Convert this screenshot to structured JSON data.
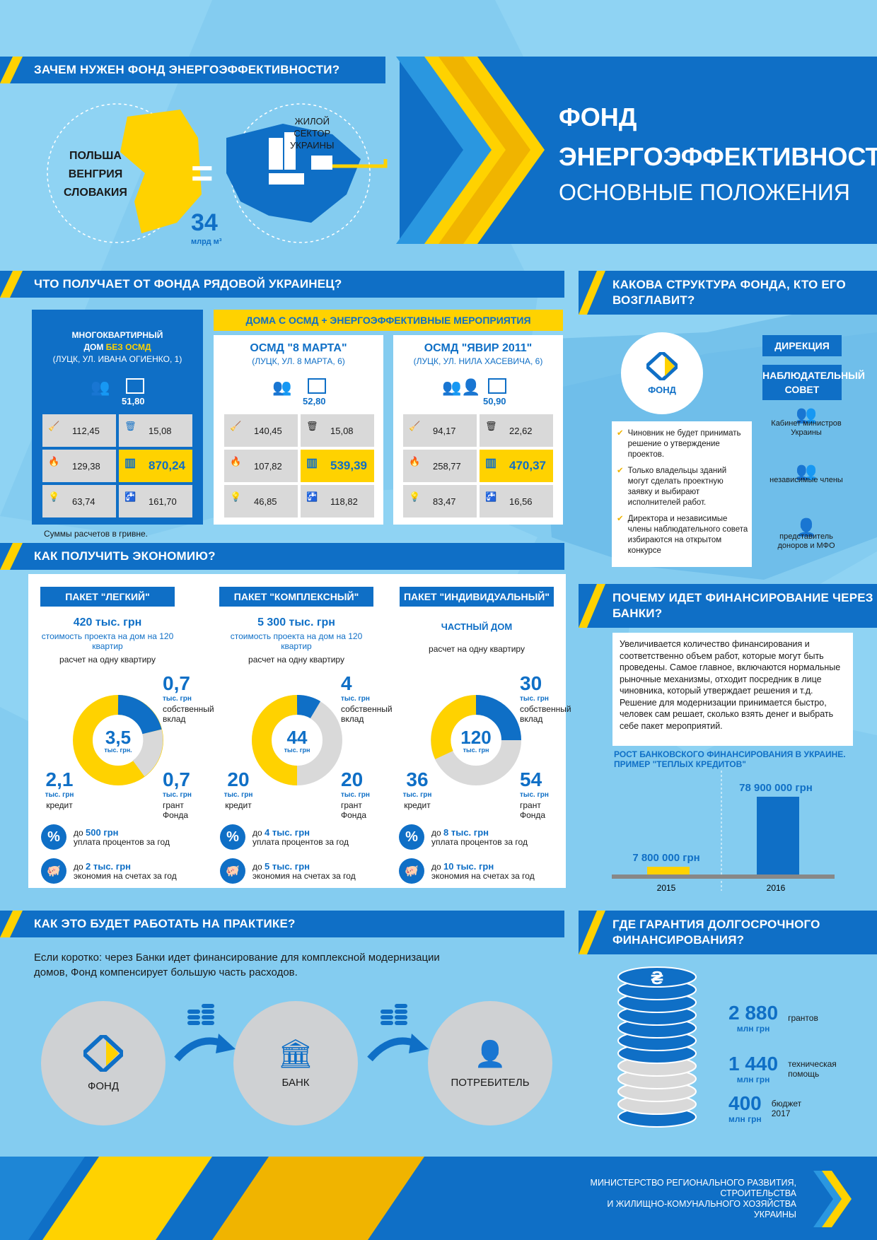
{
  "colors": {
    "blue": "#0f6fc6",
    "yellow": "#ffd200",
    "map": "#8fd3f3",
    "gray": "#d9d9d9"
  },
  "title": {
    "line1": "ФОНД",
    "line2": "ЭНЕРГОЭФФЕКТИВНОСТИ.",
    "line3": "ОСНОВНЫЕ ПОЛОЖЕНИЯ"
  },
  "s1": {
    "header": "ЗАЧЕМ НУЖЕН ФОНД ЭНЕРГОЭФФЕКТИВНОСТИ?",
    "countries": [
      "ПОЛЬША",
      "ВЕНГРИЯ",
      "СЛОВАКИЯ"
    ],
    "eq": "=",
    "sector": [
      "ЖИЛОЙ",
      "СЕКТОР",
      "УКРАИНЫ"
    ],
    "volume": "34",
    "unit": "млрд м³"
  },
  "s2": {
    "header": "ЧТО ПОЛУЧАЕТ ОТ ФОНДА РЯДОВОЙ УКРАИНЕЦ?",
    "osmd_banner": "ДОМА С ОСМД + ЭНЕРГОЭФФЕКТИВНЫЕ МЕРОПРИЯТИЯ",
    "card1": {
      "t1": "МНОГОКВАРТИРНЫЙ",
      "t2a": "ДОМ ",
      "t2b": "БЕЗ ОСМД",
      "addr": "(ЛУЦК, УЛ. ИВАНА ОГИЕНКО, 1)",
      "area": "51,80",
      "v": [
        "112,45",
        "15,08",
        "129,38",
        "870,24",
        "63,74",
        "161,70"
      ]
    },
    "card2": {
      "t": "ОСМД \"8 МАРТА\"",
      "addr": "(ЛУЦК, УЛ. 8 МАРТА, 6)",
      "area": "52,80",
      "v": [
        "140,45",
        "15,08",
        "107,82",
        "539,39",
        "46,85",
        "118,82"
      ]
    },
    "card3": {
      "t": "ОСМД \"ЯВИР 2011\"",
      "addr": "(ЛУЦК, УЛ. НИЛА ХАСЕВИЧА, 6)",
      "area": "50,90",
      "v": [
        "94,17",
        "22,62",
        "258,77",
        "470,37",
        "83,47",
        "16,56"
      ]
    },
    "note": "Суммы расчетов в гривне."
  },
  "s3": {
    "header": "КАКОВА СТРУКТУРА ФОНДА, КТО ЕГО ВОЗГЛАВИТ?",
    "fund": "ФОНД",
    "direction": "ДИРЕКЦИЯ",
    "council": "НАБЛЮДАТЕЛЬНЫЙ СОВЕТ",
    "members": [
      "Кабинет министров Украины",
      "независимые члены",
      "представитель доноров и МФО"
    ],
    "checks": [
      "Чиновник не будет принимать решение о утверждение проектов.",
      "Только владельцы зданий могут сделать проектную заявку и выбирают исполнителей работ.",
      "Директора и независимые члены наблюдательного совета избираются на открытом конкурсе"
    ]
  },
  "s4": {
    "header": "КАК ПОЛУЧИТЬ ЭКОНОМИЮ?",
    "per_flat": "расчет на одну квартиру",
    "cost_label": "стоимость проекта на дом на 120 квартир",
    "unit": "тыс. грн",
    "own": "собственный вклад",
    "credit": "кредит",
    "grant": "грант Фонда",
    "interest": "уплата процентов за год",
    "saving": "экономия на счетах за год",
    "upto": "до ",
    "packages": [
      {
        "name": "ПАКЕТ \"ЛЕГКИЙ\"",
        "cost": "420 тыс. грн",
        "total": "3,5",
        "tunit": "тыс. грн.",
        "own": "0,7",
        "credit": "2,1",
        "grant": "0,7",
        "int": "500 грн",
        "save": "2 тыс. грн"
      },
      {
        "name": "ПАКЕТ \"КОМПЛЕКСНЫЙ\"",
        "cost": "5 300 тыс. грн",
        "total": "44",
        "tunit": "тыс. грн",
        "own": "4",
        "credit": "20",
        "grant": "20",
        "int": "4 тыс. грн",
        "save": "5 тыс. грн"
      },
      {
        "name": "ПАКЕТ \"ИНДИВИДУАЛЬНЫЙ\"",
        "cost": "ЧАСТНЫЙ ДОМ",
        "total": "120",
        "tunit": "тыс. грн",
        "own": "30",
        "credit": "36",
        "grant": "54",
        "int": "8 тыс. грн",
        "save": "10 тыс. грн"
      }
    ]
  },
  "s5": {
    "header": "ПОЧЕМУ ИДЕТ ФИНАНСИРОВАНИЕ ЧЕРЕЗ БАНКИ?",
    "text": "Увеличивается количество финансирования и соответственно объем работ, которые могут быть проведены. Самое главное, включаются нормальные рыночные механизмы, отходит посредник в лице чиновника, который утверждает решения и т.д. Решение для модернизации принимается быстро, человек сам решает, сколько взять денег и выбрать себе пакет мероприятий.",
    "chart_title": "РОСТ БАНКОВСКОГО ФИНАНСИРОВАНИЯ В УКРАИНЕ. ПРИМЕР \"ТЕПЛЫХ КРЕДИТОВ\""
  },
  "chart_data": {
    "type": "bar",
    "title": "РОСТ БАНКОВСКОГО ФИНАНСИРОВАНИЯ В УКРАИНЕ. ПРИМЕР \"ТЕПЛЫХ КРЕДИТОВ\"",
    "categories": [
      "2015",
      "2016"
    ],
    "values": [
      7800000,
      78900000
    ],
    "labels": [
      "7 800 000 грн",
      "78 900 000 грн"
    ],
    "colors": [
      "#ffd200",
      "#0f6fc6"
    ]
  },
  "s6": {
    "header": "КАК ЭТО БУДЕТ РАБОТАТЬ НА ПРАКТИКЕ?",
    "text": "Если коротко: через Банки идет финансирование для комплексной модернизации домов, Фонд компенсирует большую часть расходов.",
    "nodes": [
      "ФОНД",
      "БАНК",
      "ПОТРЕБИТЕЛЬ"
    ]
  },
  "s7": {
    "header": "ГДЕ ГАРАНТИЯ ДОЛГОСРОЧНОГО ФИНАНСИРОВАНИЯ?",
    "items": [
      {
        "v": "2 880",
        "u": "млн грн",
        "l": "грантов"
      },
      {
        "v": "1 440",
        "u": "млн грн",
        "l": "техническая помощь"
      },
      {
        "v": "400",
        "u": "млн грн",
        "l": "бюджет 2017"
      }
    ]
  },
  "footer": {
    "line1": "МИНИСТЕРСТВО РЕГИОНАЛЬНОГО РАЗВИТИЯ,",
    "line2": "СТРОИТЕЛЬСТВА",
    "line3": "И ЖИЛИЩНО-КОМУНАЛЬНОГО ХОЗЯЙСТВА",
    "line4": "УКРАИНЫ"
  }
}
